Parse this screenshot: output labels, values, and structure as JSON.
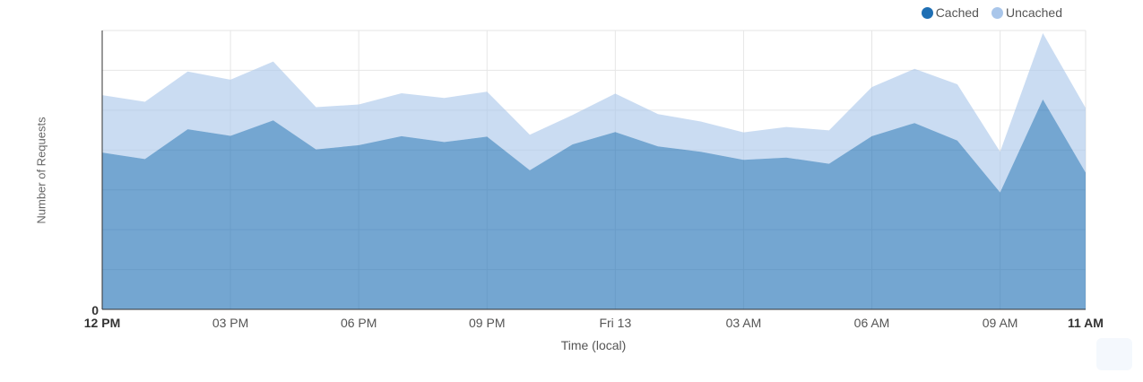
{
  "chart_data": {
    "type": "area",
    "stacked": true,
    "xlabel": "Time (local)",
    "ylabel": "Number of Requests",
    "y_tick_labels": [
      "0"
    ],
    "x_tick_labels": [
      "12 PM",
      "03 PM",
      "06 PM",
      "09 PM",
      "Fri 13",
      "03 AM",
      "06 AM",
      "09 AM",
      "11 AM"
    ],
    "x_tick_bold": [
      true,
      false,
      false,
      false,
      false,
      false,
      false,
      false,
      true
    ],
    "x": [
      "12 PM",
      "01 PM",
      "02 PM",
      "03 PM",
      "04 PM",
      "05 PM",
      "06 PM",
      "07 PM",
      "08 PM",
      "09 PM",
      "10 PM",
      "11 PM",
      "Fri 13",
      "01 AM",
      "02 AM",
      "03 AM",
      "04 AM",
      "05 AM",
      "06 AM",
      "07 AM",
      "08 AM",
      "09 AM",
      "10 AM",
      "11 AM"
    ],
    "ylim": [
      0,
      72
    ],
    "grid": true,
    "legend_position": "top-right",
    "series": [
      {
        "name": "Cached",
        "color": "#1f6fb4",
        "values": [
          40.5,
          38.8,
          46.5,
          44.8,
          48.8,
          41.3,
          42.4,
          44.7,
          43.2,
          44.6,
          35.9,
          42.6,
          45.8,
          42.1,
          40.7,
          38.6,
          39.2,
          37.6,
          44.7,
          48.1,
          43.6,
          30.2,
          54.2,
          35.3
        ]
      },
      {
        "name": "Uncached",
        "color": "#a9c6ea",
        "values": [
          14.8,
          14.8,
          14.9,
          14.5,
          15.2,
          10.9,
          10.5,
          11.1,
          11.4,
          11.6,
          9.2,
          7.6,
          9.9,
          8.3,
          7.8,
          7.1,
          7.9,
          8.6,
          12.7,
          14.0,
          14.5,
          10.5,
          17.1,
          16.7
        ]
      }
    ]
  }
}
